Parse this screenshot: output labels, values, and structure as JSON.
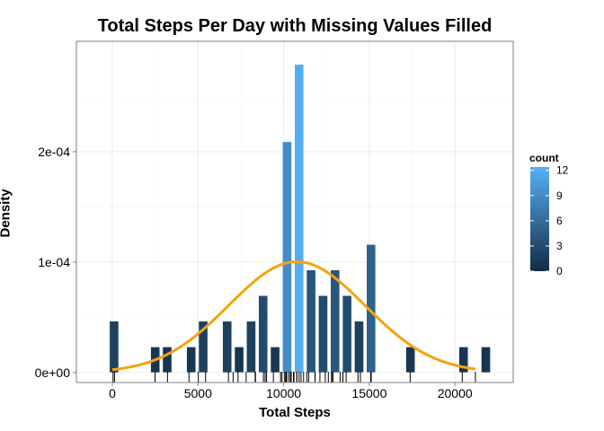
{
  "chart_data": {
    "type": "bar",
    "title": "Total Steps Per Day with Missing Values Filled",
    "xlabel": "Total Steps",
    "ylabel": "Density",
    "xlim": [
      -2100,
      23400
    ],
    "ylim": [
      -9e-06,
      0.0003
    ],
    "x_ticks": [
      0,
      5000,
      10000,
      15000,
      20000
    ],
    "x_tick_labels": [
      "0",
      "5000",
      "10000",
      "15000",
      "20000"
    ],
    "y_ticks": [
      0,
      0.0001,
      0.0002
    ],
    "y_tick_labels": [
      "0e+00",
      "1e-04",
      "2e-04"
    ],
    "bin_width": 530,
    "bins": [
      {
        "x": 100,
        "count": 2,
        "density": 4.65e-05
      },
      {
        "x": 2500,
        "count": 1,
        "density": 2.32e-05
      },
      {
        "x": 3200,
        "count": 1,
        "density": 2.32e-05
      },
      {
        "x": 4600,
        "count": 1,
        "density": 2.32e-05
      },
      {
        "x": 5300,
        "count": 2,
        "density": 4.65e-05
      },
      {
        "x": 6700,
        "count": 2,
        "density": 4.65e-05
      },
      {
        "x": 7400,
        "count": 1,
        "density": 2.32e-05
      },
      {
        "x": 8100,
        "count": 2,
        "density": 4.65e-05
      },
      {
        "x": 8800,
        "count": 3,
        "density": 6.97e-05
      },
      {
        "x": 9500,
        "count": 1,
        "density": 2.32e-05
      },
      {
        "x": 10200,
        "count": 9,
        "density": 0.000209
      },
      {
        "x": 10900,
        "count": 12,
        "density": 0.000279
      },
      {
        "x": 11600,
        "count": 4,
        "density": 9.29e-05
      },
      {
        "x": 12300,
        "count": 3,
        "density": 6.97e-05
      },
      {
        "x": 13000,
        "count": 4,
        "density": 9.29e-05
      },
      {
        "x": 13700,
        "count": 3,
        "density": 6.97e-05
      },
      {
        "x": 14400,
        "count": 2,
        "density": 4.65e-05
      },
      {
        "x": 15100,
        "count": 5,
        "density": 0.000116
      },
      {
        "x": 17400,
        "count": 1,
        "density": 2.32e-05
      },
      {
        "x": 20500,
        "count": 1,
        "density": 2.32e-05
      },
      {
        "x": 21800,
        "count": 1,
        "density": 2.32e-05
      }
    ],
    "density_curve": {
      "type": "normal",
      "mean": 10766,
      "sd": 3974,
      "x_range": [
        0,
        21194
      ],
      "color": "#F5A30F"
    },
    "rug": [
      41,
      126,
      2492,
      3219,
      4472,
      5018,
      5441,
      6778,
      7047,
      7336,
      7810,
      8334,
      8355,
      8821,
      8918,
      9000,
      9400,
      9819,
      9900,
      10056,
      10119,
      10139,
      10183,
      10304,
      10395,
      10439,
      10571,
      10600,
      10765,
      10766,
      10900,
      11015,
      11162,
      11352,
      11458,
      11829,
      11834,
      12116,
      12426,
      12608,
      12787,
      12811,
      12883,
      13294,
      13452,
      13460,
      13646,
      14339,
      14478,
      15084,
      15098,
      15110,
      17382,
      20427,
      21194
    ],
    "legend": {
      "title": "count",
      "ticks": [
        0,
        3,
        6,
        9,
        12
      ],
      "tick_labels": [
        "0",
        "3",
        "6",
        "9",
        "12"
      ],
      "range": [
        0,
        12.4
      ],
      "low_color": "#132B43",
      "high_color": "#56B1F7",
      "placement": "right"
    },
    "grid": true,
    "panel_border_color": "#7F7F7F",
    "grid_color": "#EBEBEB"
  }
}
